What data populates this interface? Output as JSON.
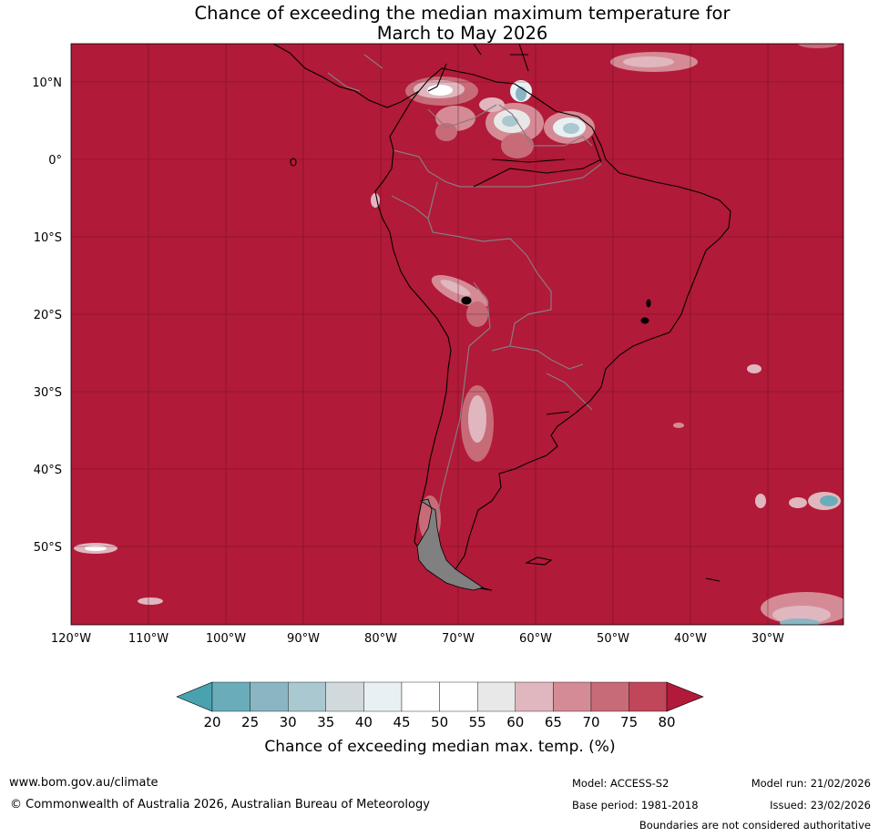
{
  "title": {
    "line1": "Chance of exceeding the median maximum temperature for",
    "line2": "March to May 2026"
  },
  "map": {
    "background_color": "#b11a38",
    "lon_ticks": [
      "120°W",
      "110°W",
      "100°W",
      "90°W",
      "80°W",
      "70°W",
      "60°W",
      "50°W",
      "40°W",
      "30°W"
    ],
    "lat_ticks": [
      "10°N",
      "0°",
      "10°S",
      "20°S",
      "30°S",
      "40°S",
      "50°S"
    ]
  },
  "colorbar": {
    "tick_labels": [
      "20",
      "25",
      "30",
      "35",
      "40",
      "45",
      "50",
      "55",
      "60",
      "65",
      "70",
      "75",
      "80"
    ],
    "colors": [
      "#4aa2b0",
      "#6aacba",
      "#8ab6c3",
      "#aac8cf",
      "#d1d9dc",
      "#e9f0f3",
      "#ffffff",
      "#ffffff",
      "#e8e8e8",
      "#e0b7be",
      "#d58b95",
      "#c86b78",
      "#c0465a",
      "#b11a38"
    ],
    "title": "Chance of exceeding median max. temp. (%)"
  },
  "footer": {
    "url": "www.bom.gov.au/climate",
    "copyright": "© Commonwealth of Australia 2026, Australian Bureau of Meteorology",
    "model": "Model: ACCESS-S2",
    "base_period": "Base period: 1981-2018",
    "model_run": "Model run: 21/02/2026",
    "issued": "Issued: 23/02/2026",
    "disclaimer": "Boundaries are not considered authoritative"
  }
}
